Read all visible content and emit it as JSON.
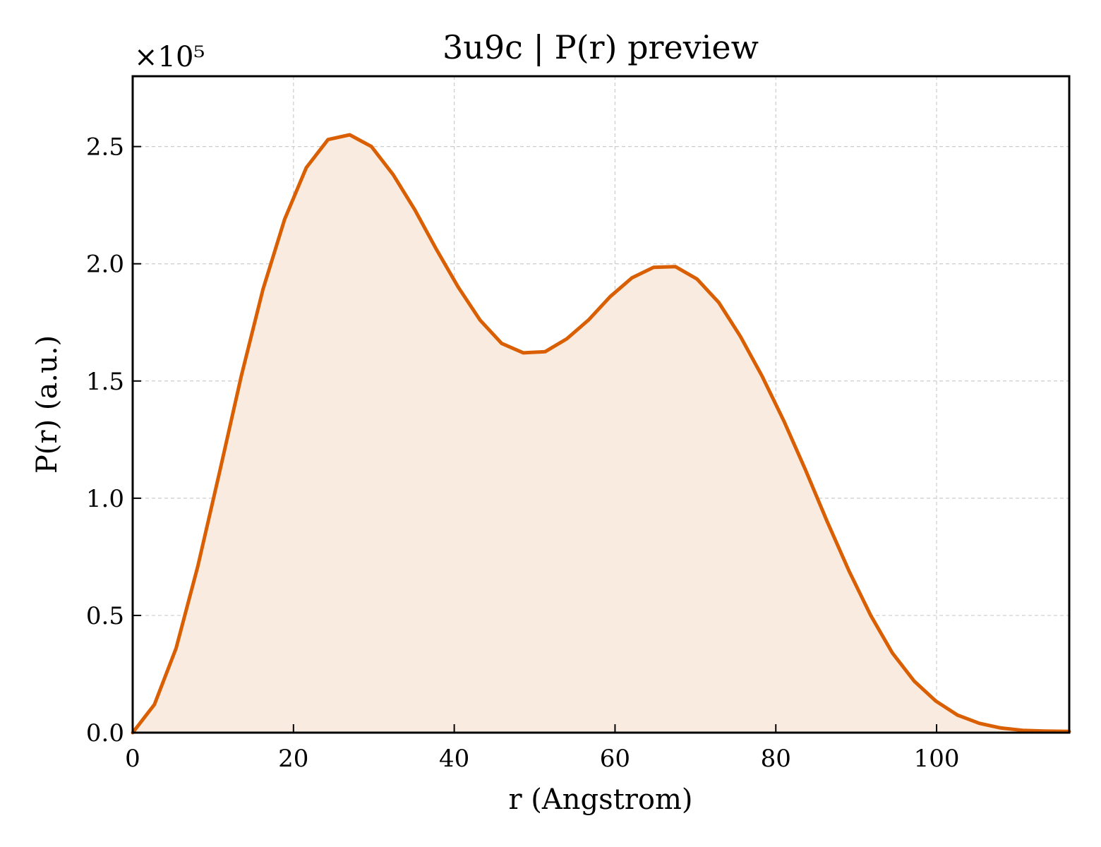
{
  "chart_data": {
    "type": "area",
    "title": "3u9c | P(r) preview",
    "xlabel": "r (Angstrom)",
    "ylabel": "P(r) (a.u.)",
    "y_multiplier_label": "×10⁵",
    "xlim": [
      0,
      116.5
    ],
    "ylim": [
      0,
      2.8
    ],
    "xticks": [
      0,
      20,
      40,
      60,
      80,
      100
    ],
    "yticks": [
      0.0,
      0.5,
      1.0,
      1.5,
      2.0,
      2.5
    ],
    "ytick_labels": [
      "0.0",
      "0.5",
      "1.0",
      "1.5",
      "2.0",
      "2.5"
    ],
    "xtick_labels": [
      "0",
      "20",
      "40",
      "60",
      "80",
      "100"
    ],
    "grid": true,
    "series": [
      {
        "color": "#d95f02",
        "fill_color": "#f9ebe0",
        "x": [
          0,
          2.7,
          5.4,
          8.1,
          10.8,
          13.5,
          16.2,
          18.9,
          21.6,
          24.3,
          27.0,
          29.7,
          32.4,
          35.1,
          37.8,
          40.5,
          43.2,
          45.9,
          48.6,
          51.3,
          54.0,
          56.7,
          59.4,
          62.1,
          64.8,
          67.5,
          70.2,
          72.9,
          75.6,
          78.3,
          81.0,
          83.7,
          86.4,
          89.1,
          91.8,
          94.5,
          97.2,
          99.9,
          102.6,
          105.3,
          108.0,
          110.7,
          113.4,
          116.5
        ],
        "y": [
          0.0,
          0.12,
          0.36,
          0.71,
          1.11,
          1.52,
          1.89,
          2.19,
          2.41,
          2.53,
          2.55,
          2.5,
          2.38,
          2.23,
          2.06,
          1.9,
          1.76,
          1.66,
          1.62,
          1.625,
          1.68,
          1.76,
          1.86,
          1.94,
          1.985,
          1.988,
          1.935,
          1.835,
          1.69,
          1.52,
          1.33,
          1.12,
          0.9,
          0.69,
          0.5,
          0.34,
          0.22,
          0.135,
          0.075,
          0.04,
          0.02,
          0.01,
          0.007,
          0.005
        ]
      }
    ]
  }
}
